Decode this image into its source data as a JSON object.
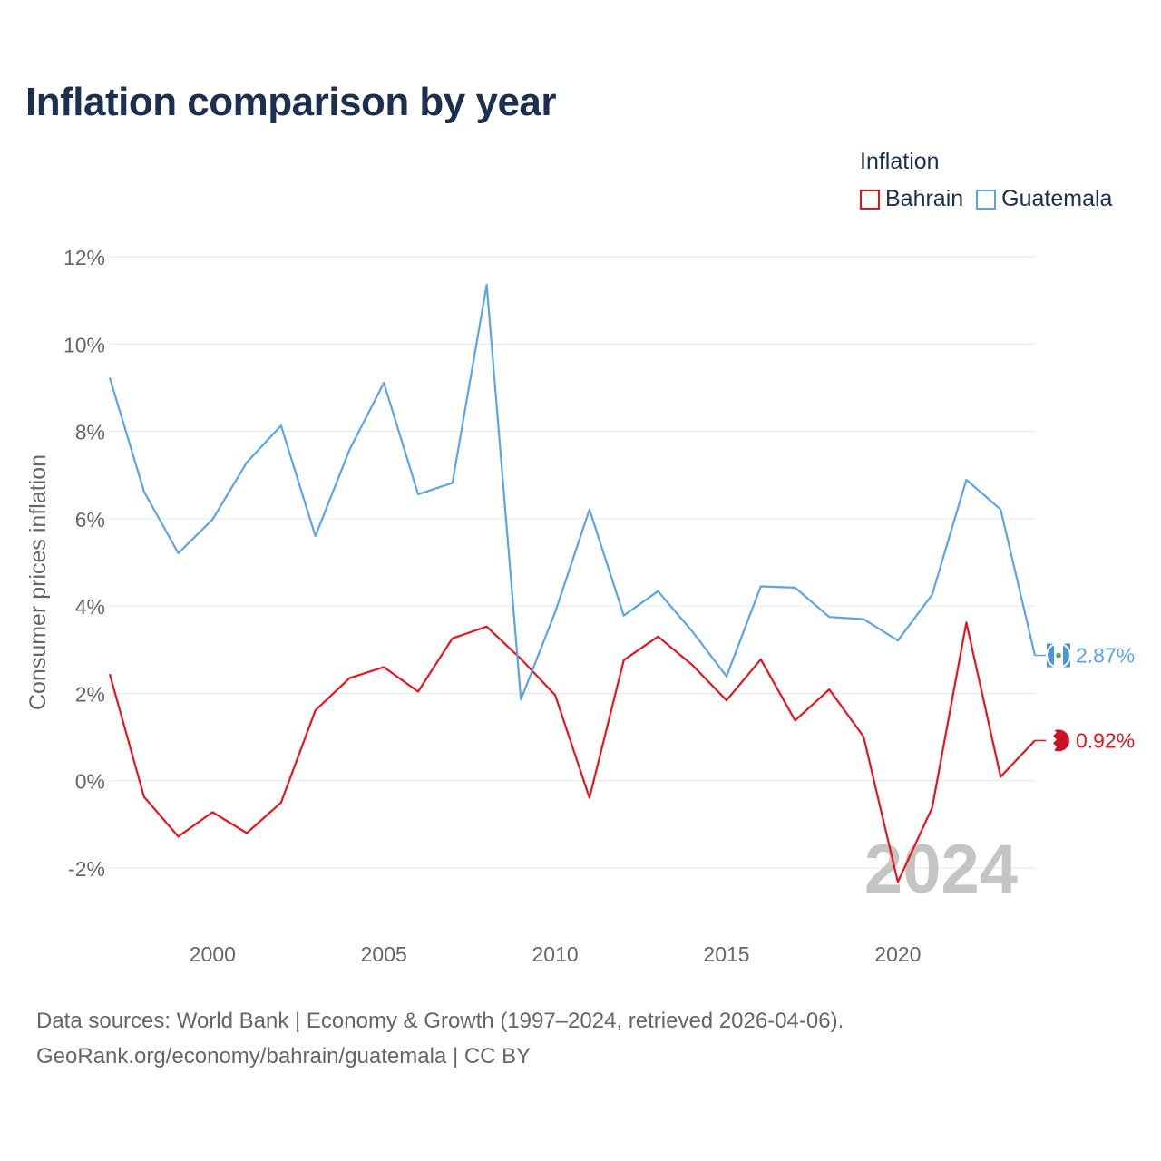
{
  "title": "Inflation comparison by year",
  "legend": {
    "title": "Inflation",
    "items": [
      {
        "name": "Bahrain",
        "color": "#e8141c"
      },
      {
        "name": "Guatemala",
        "color": "#5ba4e6"
      }
    ]
  },
  "watermark_year": "2024",
  "end_labels": {
    "bahrain": "0.92%",
    "guatemala": "2.87%"
  },
  "source": {
    "line1": "Data sources: World Bank | Economy & Growth (1997–2024, retrieved 2026-04-06).",
    "line2": "GeoRank.org/economy/bahrain/guatemala | CC BY"
  },
  "chart_data": {
    "type": "line",
    "title": "Inflation comparison by year",
    "xlabel": "",
    "ylabel": "Consumer prices inflation",
    "xlim": [
      1997,
      2024
    ],
    "ylim": [
      -2,
      12
    ],
    "x_ticks": [
      2000,
      2005,
      2010,
      2015,
      2020
    ],
    "y_ticks": [
      -2,
      0,
      2,
      4,
      6,
      8,
      10,
      12
    ],
    "y_tick_labels": [
      "-2%",
      "0%",
      "2%",
      "4%",
      "6%",
      "8%",
      "10%",
      "12%"
    ],
    "grid": true,
    "x": [
      1997,
      1998,
      1999,
      2000,
      2001,
      2002,
      2003,
      2004,
      2005,
      2006,
      2007,
      2008,
      2009,
      2010,
      2011,
      2012,
      2013,
      2014,
      2015,
      2016,
      2017,
      2018,
      2019,
      2020,
      2021,
      2022,
      2023,
      2024
    ],
    "series": [
      {
        "name": "Bahrain",
        "color": "#e8141c",
        "values": [
          2.44,
          -0.37,
          -1.28,
          -0.72,
          -1.2,
          -0.5,
          1.61,
          2.35,
          2.6,
          2.04,
          3.26,
          3.53,
          2.79,
          1.96,
          -0.39,
          2.76,
          3.3,
          2.65,
          1.84,
          2.78,
          1.38,
          2.09,
          1.01,
          -2.32,
          -0.62,
          3.62,
          0.09,
          0.92
        ]
      },
      {
        "name": "Guatemala",
        "color": "#5ba4e6",
        "values": [
          9.23,
          6.62,
          5.21,
          5.98,
          7.29,
          8.13,
          5.6,
          7.58,
          9.11,
          6.56,
          6.82,
          11.36,
          1.86,
          3.86,
          6.21,
          3.78,
          4.34,
          3.42,
          2.39,
          4.45,
          4.42,
          3.75,
          3.7,
          3.21,
          4.26,
          6.89,
          6.21,
          2.87
        ]
      }
    ]
  }
}
